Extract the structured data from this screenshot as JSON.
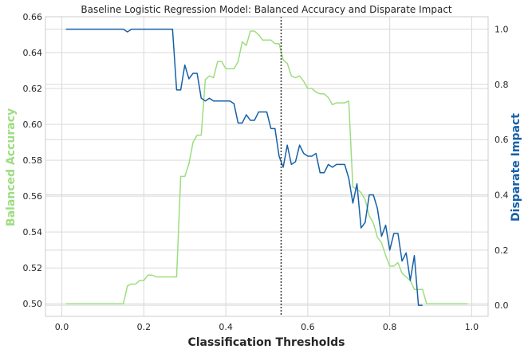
{
  "chart_data": {
    "type": "line",
    "title": "Baseline Logistic Regression Model: Balanced Accuracy and Disparate Impact",
    "xlabel": "Classification Thresholds",
    "ylabel_left": "Balanced Accuracy",
    "ylabel_right": "Disparate Impact",
    "xlim": [
      -0.04,
      1.04
    ],
    "ylim_left": [
      0.493,
      0.66
    ],
    "ylim_right": [
      -0.04,
      1.045
    ],
    "x_ticks": [
      0.0,
      0.2,
      0.4,
      0.6,
      0.8,
      1.0
    ],
    "x_tick_labels": [
      "0.0",
      "0.2",
      "0.4",
      "0.6",
      "0.8",
      "1.0"
    ],
    "y_left_ticks": [
      0.5,
      0.52,
      0.54,
      0.56,
      0.58,
      0.6,
      0.62,
      0.64,
      0.66
    ],
    "y_left_tick_labels": [
      "0.50",
      "0.52",
      "0.54",
      "0.56",
      "0.58",
      "0.60",
      "0.62",
      "0.64",
      "0.66"
    ],
    "y_right_ticks": [
      0.0,
      0.2,
      0.4,
      0.6,
      0.8,
      1.0
    ],
    "y_right_tick_labels": [
      "0.0",
      "0.2",
      "0.4",
      "0.6",
      "0.8",
      "1.0"
    ],
    "grid": true,
    "vline_x": 0.535,
    "colors": {
      "balanced_accuracy": "#9ddd80",
      "disparate_impact": "#1660a8",
      "vline": "#333333"
    },
    "series": [
      {
        "axis": "left",
        "x": [
          0.01,
          0.15,
          0.16,
          0.17,
          0.18,
          0.19,
          0.2,
          0.21,
          0.22,
          0.23,
          0.24,
          0.26,
          0.27,
          0.28,
          0.29,
          0.3,
          0.31,
          0.32,
          0.33,
          0.34,
          0.35,
          0.36,
          0.37,
          0.38,
          0.39,
          0.4,
          0.41,
          0.42,
          0.43,
          0.44,
          0.45,
          0.46,
          0.47,
          0.48,
          0.49,
          0.5,
          0.51,
          0.52,
          0.53,
          0.54,
          0.55,
          0.56,
          0.57,
          0.58,
          0.59,
          0.6,
          0.61,
          0.62,
          0.63,
          0.64,
          0.65,
          0.66,
          0.67,
          0.68,
          0.69,
          0.7,
          0.71,
          0.72,
          0.73,
          0.74,
          0.75,
          0.76,
          0.77,
          0.78,
          0.79,
          0.8,
          0.81,
          0.82,
          0.83,
          0.84,
          0.85,
          0.86,
          0.87,
          0.88,
          0.89,
          0.9,
          0.99
        ],
        "values": [
          0.5,
          0.5,
          0.51,
          0.511,
          0.511,
          0.513,
          0.513,
          0.516,
          0.516,
          0.515,
          0.515,
          0.515,
          0.515,
          0.515,
          0.571,
          0.571,
          0.578,
          0.59,
          0.594,
          0.594,
          0.625,
          0.627,
          0.626,
          0.635,
          0.635,
          0.631,
          0.631,
          0.631,
          0.635,
          0.646,
          0.644,
          0.652,
          0.652,
          0.65,
          0.647,
          0.647,
          0.647,
          0.645,
          0.645,
          0.636,
          0.634,
          0.627,
          0.626,
          0.627,
          0.624,
          0.62,
          0.62,
          0.618,
          0.617,
          0.617,
          0.615,
          0.611,
          0.612,
          0.612,
          0.612,
          0.613,
          0.565,
          0.564,
          0.562,
          0.558,
          0.549,
          0.545,
          0.537,
          0.534,
          0.527,
          0.521,
          0.521,
          0.523,
          0.517,
          0.515,
          0.513,
          0.508,
          0.508,
          0.508,
          0.5,
          0.5,
          0.5
        ]
      },
      {
        "axis": "right",
        "x": [
          0.01,
          0.15,
          0.16,
          0.17,
          0.18,
          0.19,
          0.2,
          0.21,
          0.22,
          0.23,
          0.24,
          0.26,
          0.27,
          0.28,
          0.29,
          0.3,
          0.31,
          0.32,
          0.33,
          0.34,
          0.35,
          0.36,
          0.37,
          0.38,
          0.39,
          0.4,
          0.41,
          0.42,
          0.43,
          0.44,
          0.45,
          0.46,
          0.47,
          0.48,
          0.49,
          0.5,
          0.51,
          0.52,
          0.53,
          0.54,
          0.55,
          0.56,
          0.57,
          0.58,
          0.59,
          0.6,
          0.61,
          0.62,
          0.63,
          0.64,
          0.65,
          0.66,
          0.67,
          0.68,
          0.69,
          0.7,
          0.71,
          0.72,
          0.73,
          0.74,
          0.75,
          0.76,
          0.77,
          0.78,
          0.79,
          0.8,
          0.81,
          0.82,
          0.83,
          0.84,
          0.85,
          0.86,
          0.87,
          0.88
        ],
        "values": [
          1.0,
          1.0,
          0.99,
          1.0,
          1.0,
          1.0,
          1.0,
          1.0,
          1.0,
          1.0,
          1.0,
          1.0,
          1.0,
          0.78,
          0.78,
          0.87,
          0.82,
          0.84,
          0.84,
          0.75,
          0.74,
          0.75,
          0.74,
          0.74,
          0.74,
          0.74,
          0.74,
          0.73,
          0.66,
          0.66,
          0.69,
          0.67,
          0.67,
          0.7,
          0.7,
          0.7,
          0.64,
          0.64,
          0.54,
          0.5,
          0.58,
          0.51,
          0.52,
          0.58,
          0.55,
          0.54,
          0.54,
          0.55,
          0.48,
          0.48,
          0.51,
          0.5,
          0.51,
          0.51,
          0.51,
          0.46,
          0.37,
          0.44,
          0.28,
          0.3,
          0.4,
          0.4,
          0.35,
          0.25,
          0.29,
          0.2,
          0.26,
          0.26,
          0.16,
          0.19,
          0.09,
          0.18,
          0.0,
          0.0
        ]
      }
    ]
  }
}
